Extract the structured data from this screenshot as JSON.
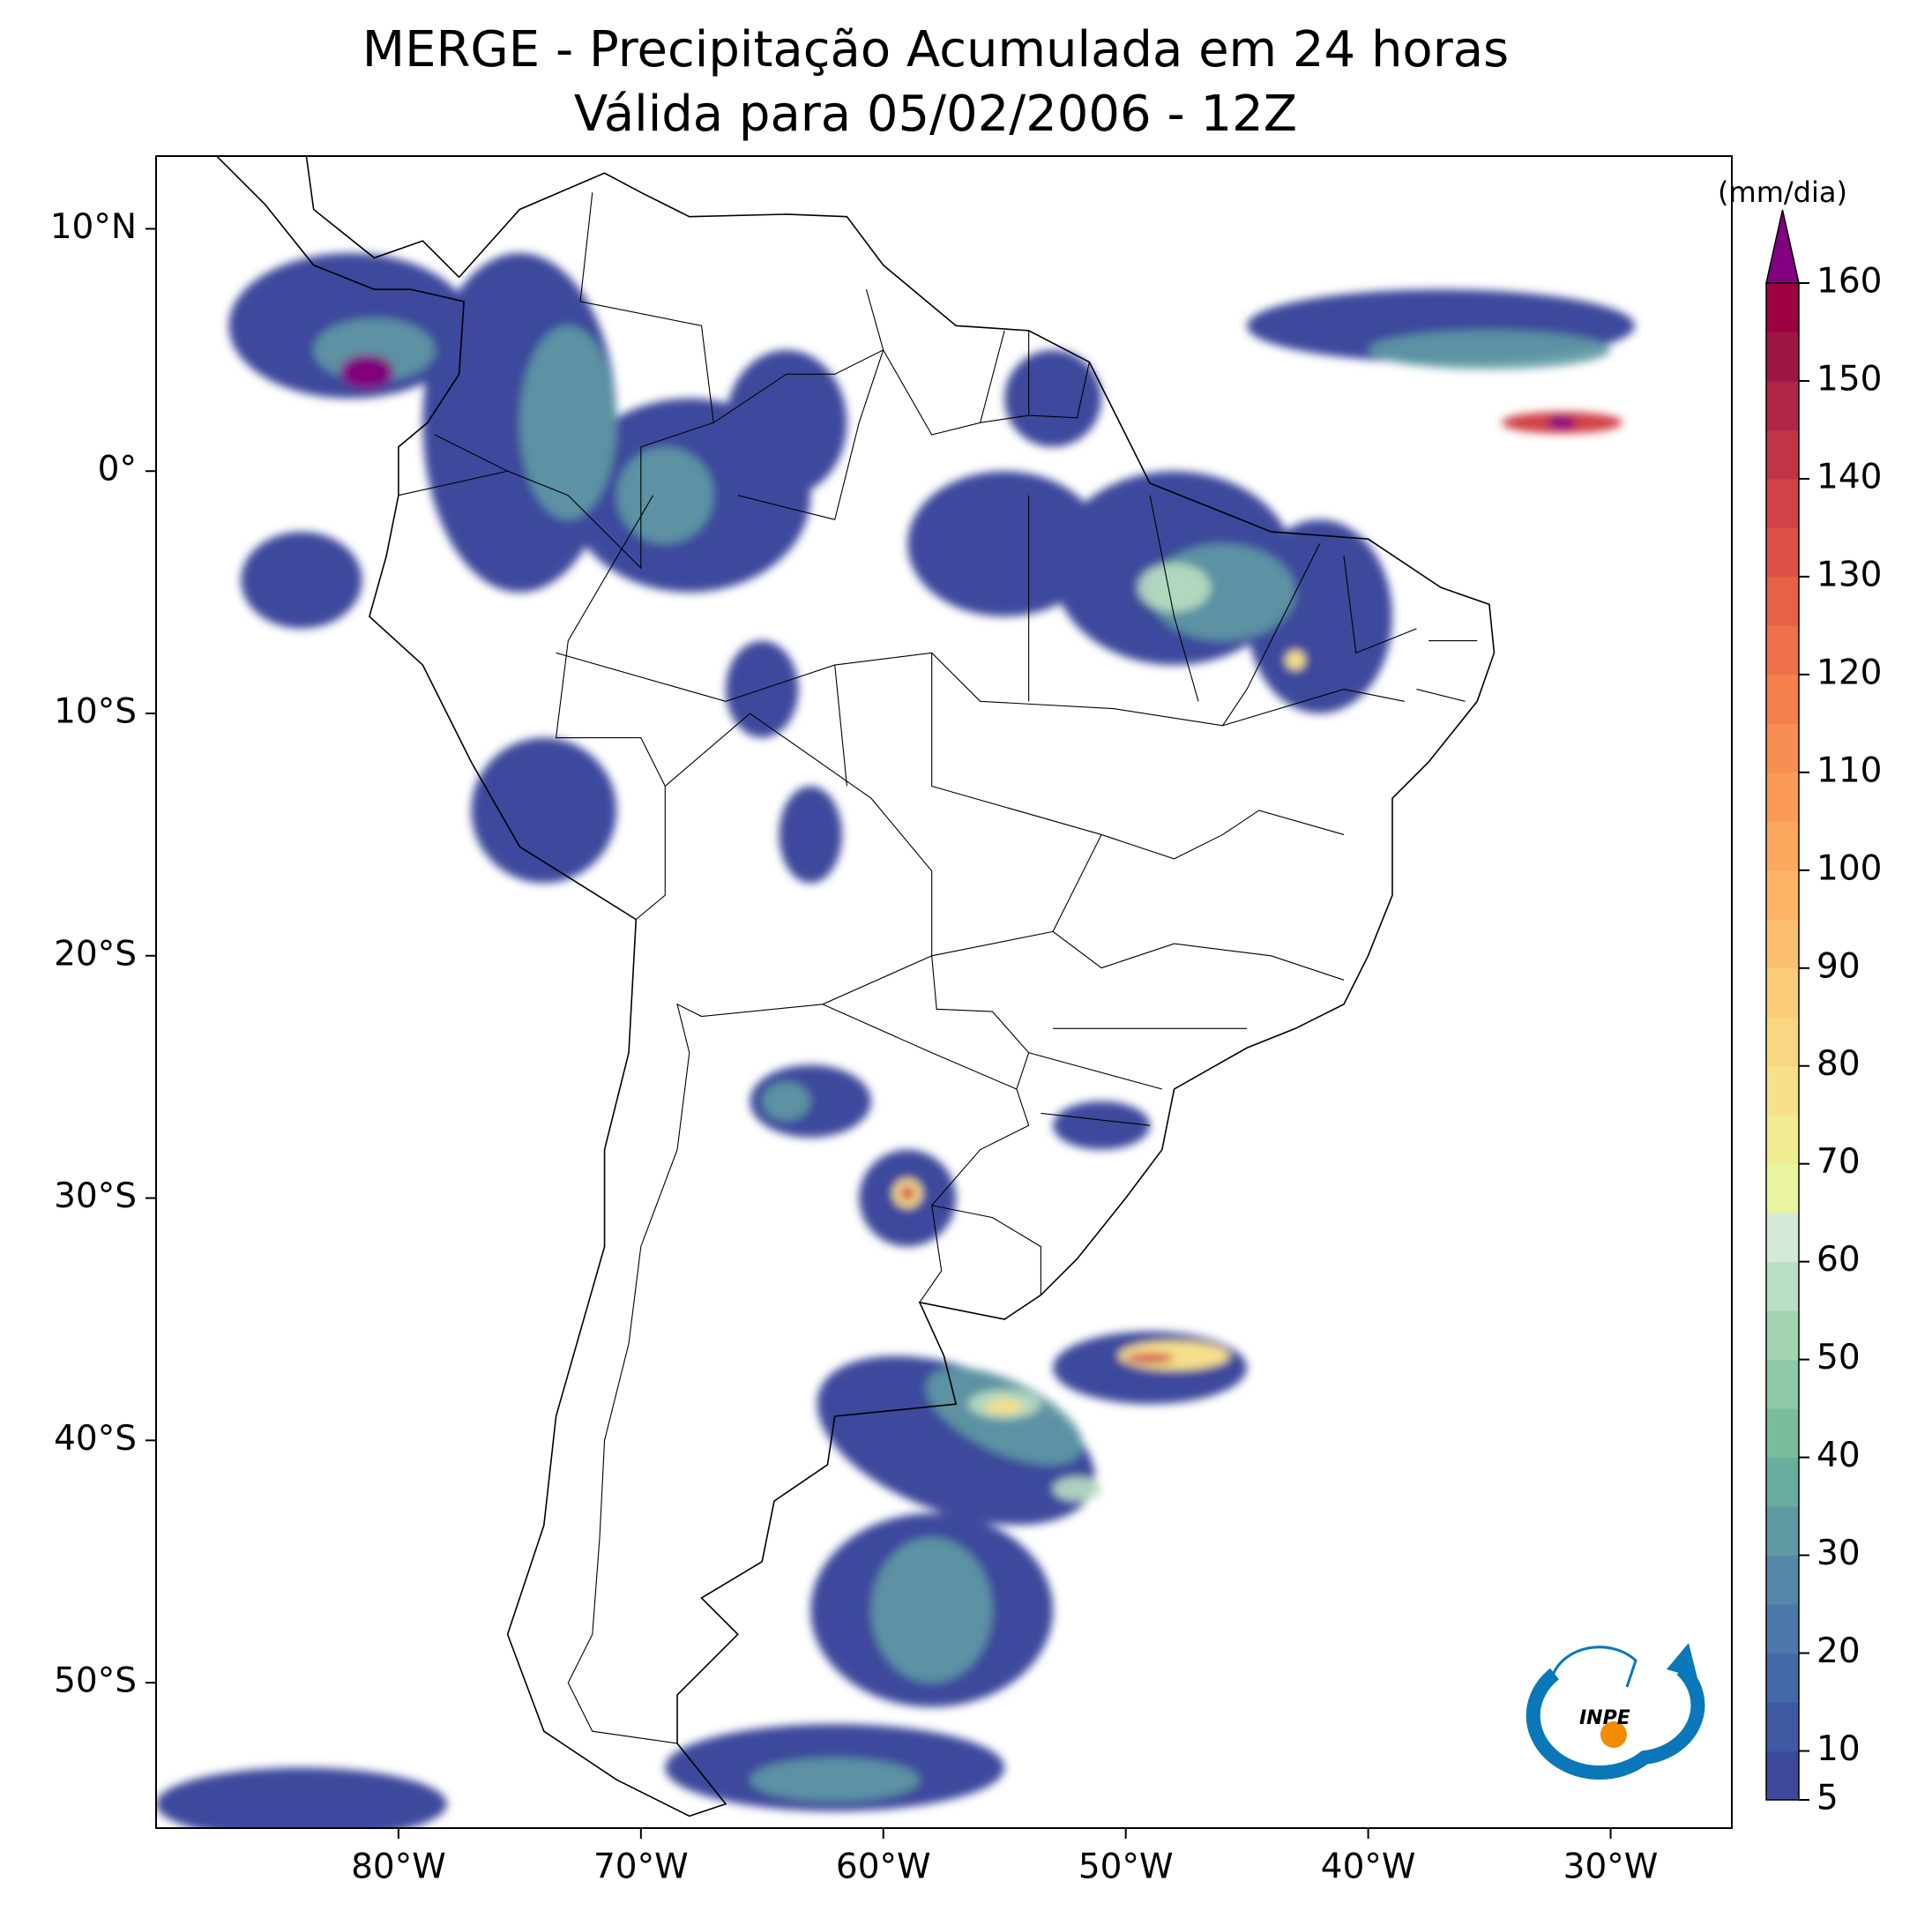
{
  "chart_data": {
    "type": "map",
    "title": "MERGE - Precipitação Acumulada em 24 horas",
    "subtitle": "Válida para 05/02/2006 - 12Z",
    "xlim": [
      -90,
      -25
    ],
    "ylim": [
      -56,
      13
    ],
    "xticks": [
      {
        "value": -80,
        "label": "80°W"
      },
      {
        "value": -70,
        "label": "70°W"
      },
      {
        "value": -60,
        "label": "60°W"
      },
      {
        "value": -50,
        "label": "50°W"
      },
      {
        "value": -40,
        "label": "40°W"
      },
      {
        "value": -30,
        "label": "30°W"
      }
    ],
    "yticks": [
      {
        "value": 10,
        "label": "10°N"
      },
      {
        "value": 0,
        "label": "0°"
      },
      {
        "value": -10,
        "label": "10°S"
      },
      {
        "value": -20,
        "label": "20°S"
      },
      {
        "value": -30,
        "label": "30°S"
      },
      {
        "value": -40,
        "label": "40°S"
      },
      {
        "value": -50,
        "label": "50°S"
      }
    ],
    "colorbar": {
      "label": "(mm/dia)",
      "levels": [
        5,
        10,
        15,
        20,
        25,
        30,
        35,
        40,
        45,
        50,
        55,
        60,
        65,
        70,
        75,
        80,
        85,
        90,
        95,
        100,
        105,
        110,
        115,
        120,
        125,
        130,
        135,
        140,
        145,
        150,
        155,
        160
      ],
      "ticks": [
        5,
        10,
        20,
        30,
        40,
        50,
        60,
        70,
        80,
        90,
        100,
        110,
        120,
        130,
        140,
        150,
        160
      ],
      "colors": [
        "#3d4a9c",
        "#3f5aa2",
        "#4568a8",
        "#4d78ab",
        "#5588a8",
        "#5f9aa4",
        "#69ad9f",
        "#79bd9c",
        "#8dc9a4",
        "#a3d3b0",
        "#bbdfc3",
        "#d4e9d8",
        "#e9f3a0",
        "#f1ec93",
        "#f6e08a",
        "#f9d682",
        "#fbcc7a",
        "#fcbf70",
        "#fdb366",
        "#fca75e",
        "#fb9b57",
        "#f88e52",
        "#f4804e",
        "#ee714a",
        "#e66148",
        "#dc5247",
        "#d04346",
        "#c13446",
        "#b02545",
        "#9e1744",
        "#9e0142"
      ],
      "extend_color": "#800080"
    }
  },
  "logo_text": "INPE"
}
